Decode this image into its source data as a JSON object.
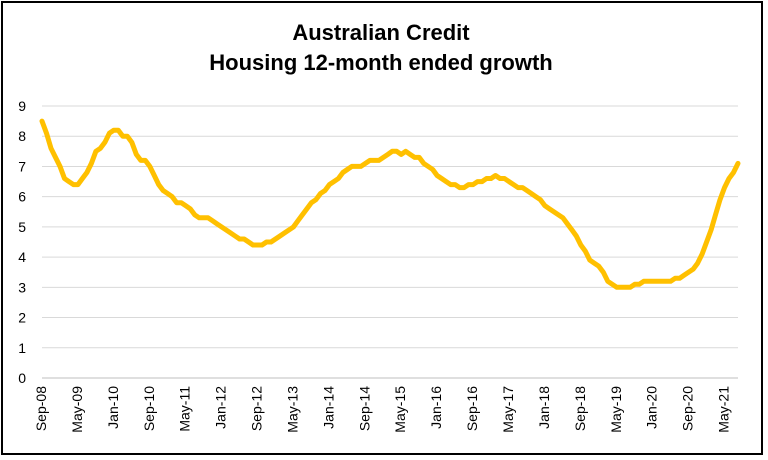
{
  "chart_data": {
    "type": "line",
    "title": "Australian Credit",
    "subtitle": "Housing 12-month ended growth",
    "xlabel": "",
    "ylabel": "",
    "ylim": [
      0,
      9
    ],
    "yticks": [
      "0",
      "1",
      "2",
      "3",
      "4",
      "5",
      "6",
      "7",
      "8",
      "9"
    ],
    "x_tick_labels": [
      "Sep-08",
      "May-09",
      "Jan-10",
      "Sep-10",
      "May-11",
      "Jan-12",
      "Sep-12",
      "May-13",
      "Jan-14",
      "Sep-14",
      "May-15",
      "Jan-16",
      "Sep-16",
      "May-17",
      "Jan-18",
      "Sep-18",
      "May-19",
      "Jan-20",
      "Sep-20",
      "May-21"
    ],
    "x_start": "2008-09",
    "x_end": "2021-10",
    "grid": true,
    "legend": "none",
    "line_color": "#FFC000",
    "series": [
      {
        "values": [
          8.5,
          8.1,
          7.6,
          7.3,
          7.0,
          6.6,
          6.5,
          6.4,
          6.4,
          6.6,
          6.8,
          7.1,
          7.5,
          7.6,
          7.8,
          8.1,
          8.2,
          8.2,
          8.0,
          8.0,
          7.8,
          7.4,
          7.2,
          7.2,
          7.0,
          6.7,
          6.4,
          6.2,
          6.1,
          6.0,
          5.8,
          5.8,
          5.7,
          5.6,
          5.4,
          5.3,
          5.3,
          5.3,
          5.2,
          5.1,
          5.0,
          4.9,
          4.8,
          4.7,
          4.6,
          4.6,
          4.5,
          4.4,
          4.4,
          4.4,
          4.5,
          4.5,
          4.6,
          4.7,
          4.8,
          4.9,
          5.0,
          5.2,
          5.4,
          5.6,
          5.8,
          5.9,
          6.1,
          6.2,
          6.4,
          6.5,
          6.6,
          6.8,
          6.9,
          7.0,
          7.0,
          7.0,
          7.1,
          7.2,
          7.2,
          7.2,
          7.3,
          7.4,
          7.5,
          7.5,
          7.4,
          7.5,
          7.4,
          7.3,
          7.3,
          7.1,
          7.0,
          6.9,
          6.7,
          6.6,
          6.5,
          6.4,
          6.4,
          6.3,
          6.3,
          6.4,
          6.4,
          6.5,
          6.5,
          6.6,
          6.6,
          6.7,
          6.6,
          6.6,
          6.5,
          6.4,
          6.3,
          6.3,
          6.2,
          6.1,
          6.0,
          5.9,
          5.7,
          5.6,
          5.5,
          5.4,
          5.3,
          5.1,
          4.9,
          4.7,
          4.4,
          4.2,
          3.9,
          3.8,
          3.7,
          3.5,
          3.2,
          3.1,
          3.0,
          3.0,
          3.0,
          3.0,
          3.1,
          3.1,
          3.2,
          3.2,
          3.2,
          3.2,
          3.2,
          3.2,
          3.2,
          3.3,
          3.3,
          3.4,
          3.5,
          3.6,
          3.8,
          4.1,
          4.5,
          4.9,
          5.4,
          5.9,
          6.3,
          6.6,
          6.8,
          7.1
        ]
      }
    ]
  }
}
